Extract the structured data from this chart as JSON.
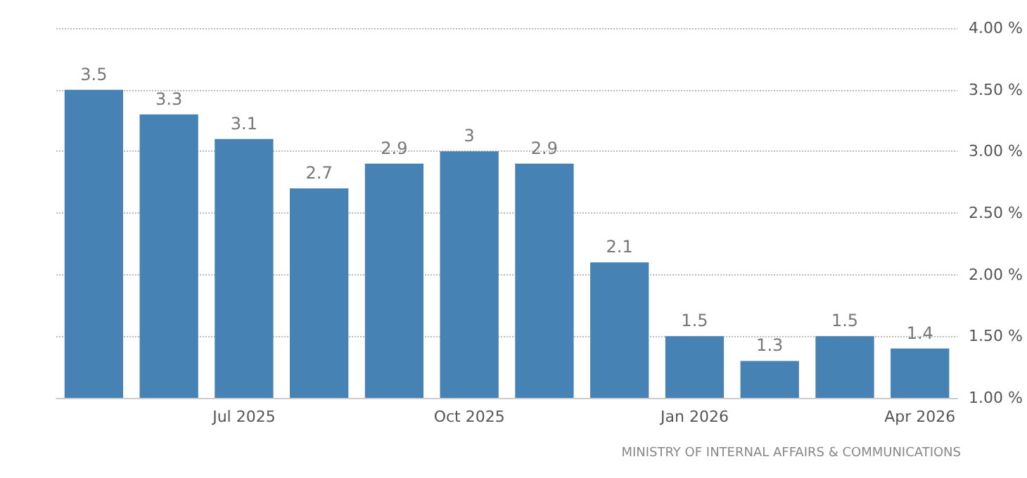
{
  "chart_data": {
    "type": "bar",
    "categories": [
      null,
      null,
      "Jul 2025",
      null,
      null,
      "Oct 2025",
      null,
      null,
      "Jan 2026",
      null,
      null,
      "Apr 2026"
    ],
    "values": [
      3.5,
      3.3,
      3.1,
      2.7,
      2.9,
      3,
      2.9,
      2.1,
      1.5,
      1.3,
      1.5,
      1.4
    ],
    "color": "#4682b4",
    "ylim": [
      1,
      4
    ],
    "yticks": [
      {
        "value": 1,
        "label": "1.00 %"
      },
      {
        "value": 1.5,
        "label": "1.50 %"
      },
      {
        "value": 2,
        "label": "2.00 %"
      },
      {
        "value": 2.5,
        "label": "2.50 %"
      },
      {
        "value": 3,
        "label": "3.00 %"
      },
      {
        "value": 3.5,
        "label": "3.50 %"
      },
      {
        "value": 4,
        "label": "4.00 %"
      }
    ],
    "grid": "y",
    "data_labels": true,
    "annotations": [
      "MINISTRY OF INTERNAL AFFAIRS & COMMUNICATIONS"
    ]
  }
}
